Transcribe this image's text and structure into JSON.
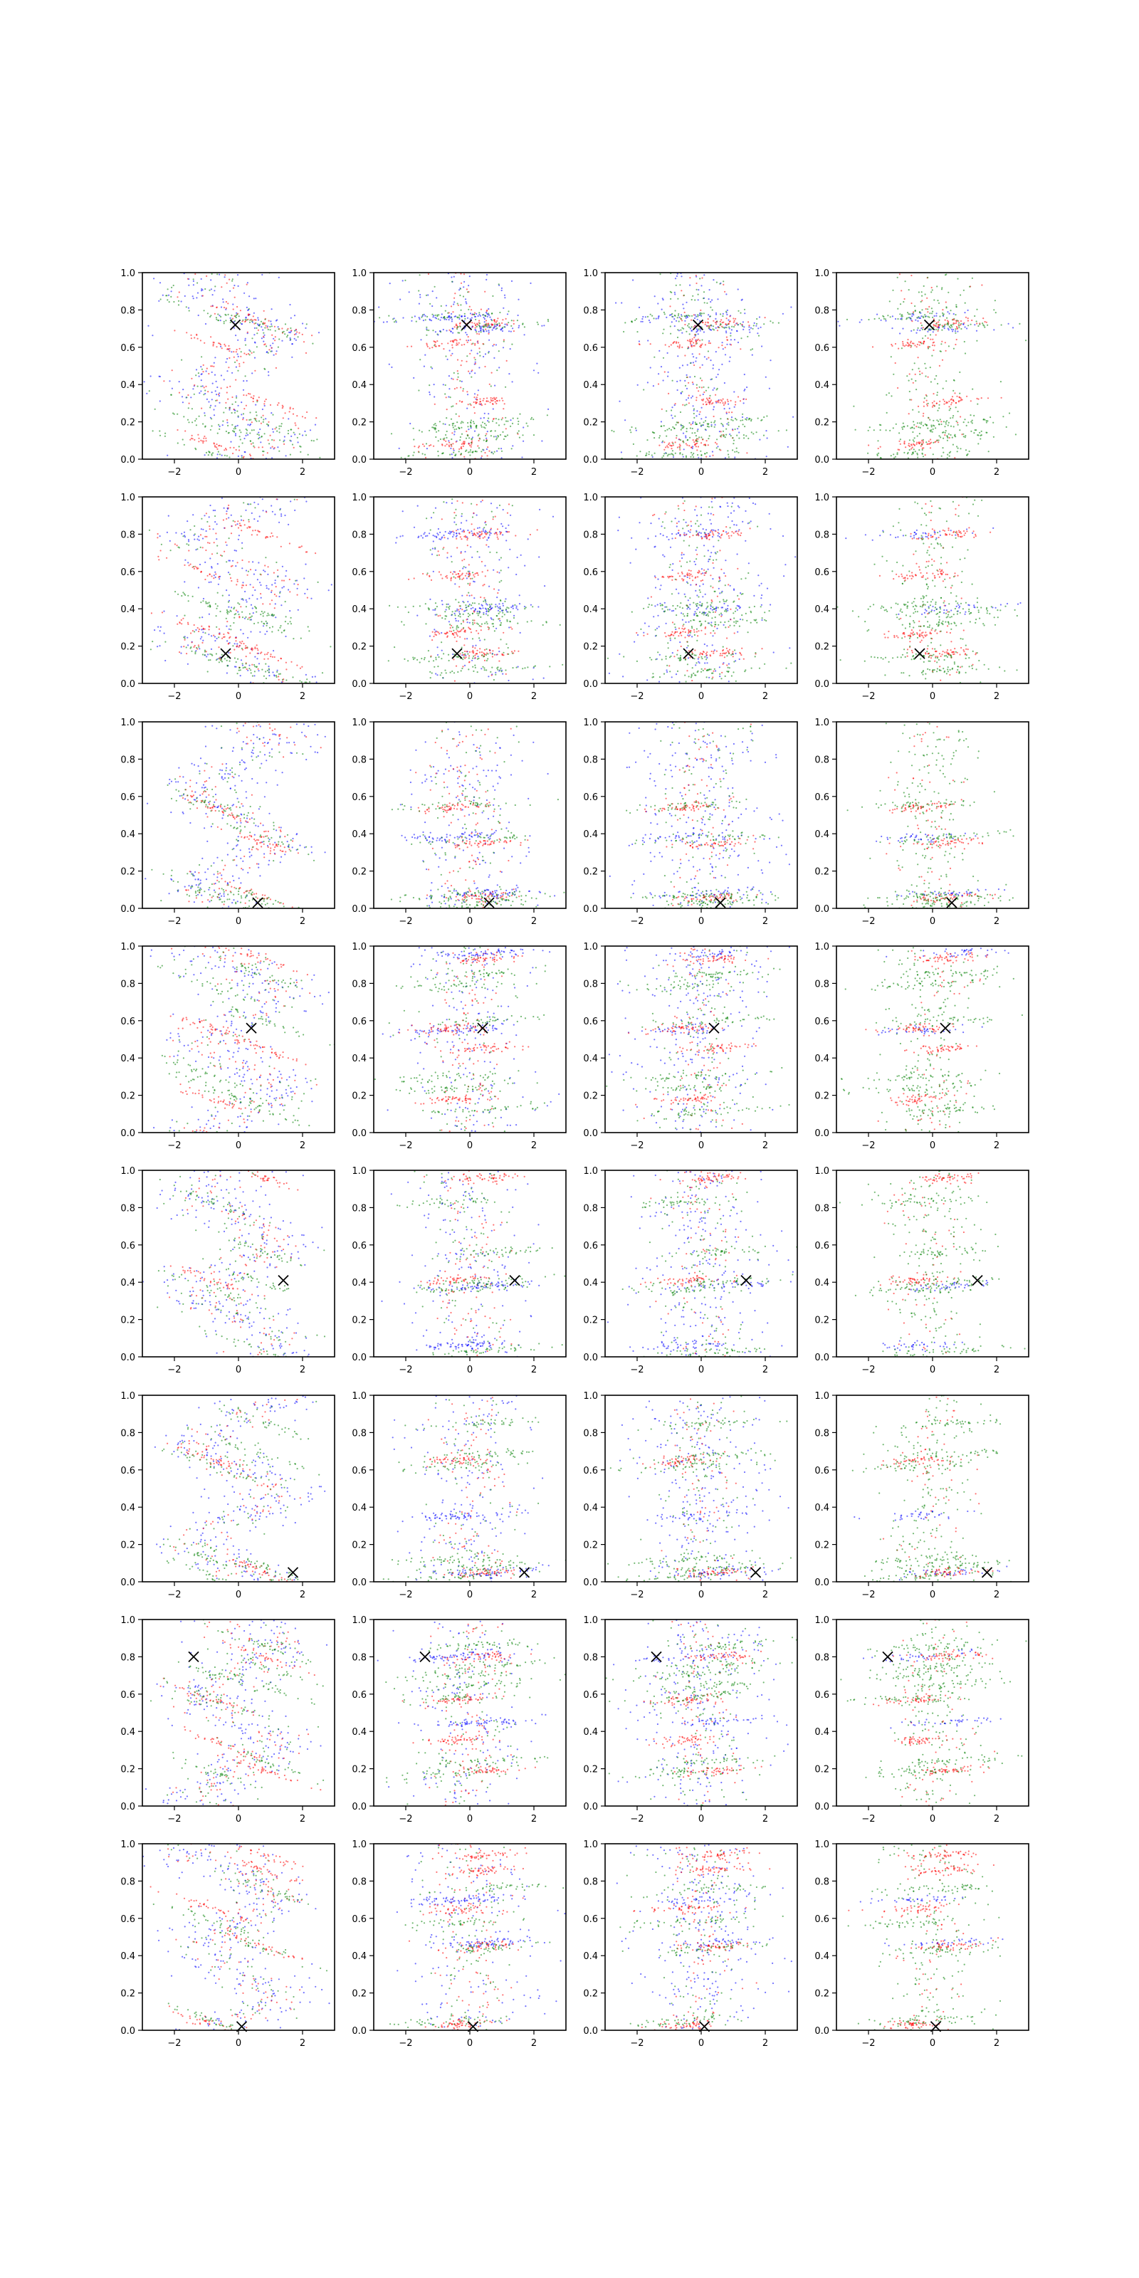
{
  "chart_data": {
    "type": "scatter",
    "grid": {
      "rows": 8,
      "cols": 4
    },
    "title": "",
    "xlabel": "",
    "ylabel": "",
    "xlim": [
      -3,
      3
    ],
    "ylim": [
      0,
      1
    ],
    "x_ticks": [
      -2,
      0,
      2
    ],
    "y_ticks": [
      0.0,
      0.2,
      0.4,
      0.6,
      0.8,
      1.0
    ],
    "x_tick_labels": [
      "−2",
      "0",
      "2"
    ],
    "y_tick_labels": [
      "0.0",
      "0.2",
      "0.4",
      "0.6",
      "0.8",
      "1.0"
    ],
    "legend": "none",
    "series_colors": {
      "blue": "#0000ff",
      "red": "#ff0000",
      "green": "#008000"
    },
    "marker_colors": {
      "x_marker": "#000000"
    },
    "rows": [
      {
        "x_marker": [
          -0.1,
          0.72
        ],
        "red_bands": [
          0.31,
          0.62,
          0.73,
          0.08
        ],
        "green_bands": [
          0.71,
          0.77,
          0.2,
          0.17,
          0.12,
          0.03
        ],
        "blue_bands": [
          0.7,
          0.76
        ]
      },
      {
        "x_marker": [
          -0.4,
          0.16
        ],
        "red_bands": [
          0.8,
          0.27,
          0.16,
          0.58
        ],
        "green_bands": [
          0.07,
          0.14,
          0.38,
          0.42,
          0.32
        ],
        "blue_bands": [
          0.4,
          0.8
        ]
      },
      {
        "x_marker": [
          0.6,
          0.03
        ],
        "red_bands": [
          0.06,
          0.54,
          0.35
        ],
        "green_bands": [
          0.05,
          0.07,
          0.02,
          0.55,
          0.38
        ],
        "blue_bands": [
          0.08,
          0.38
        ]
      },
      {
        "x_marker": [
          0.4,
          0.56
        ],
        "red_bands": [
          0.93,
          0.56,
          0.45,
          0.18
        ],
        "green_bands": [
          0.85,
          0.79,
          0.6,
          0.24,
          0.12,
          0.3
        ],
        "blue_bands": [
          0.96,
          0.55
        ]
      },
      {
        "x_marker": [
          1.4,
          0.41
        ],
        "red_bands": [
          0.96,
          0.41
        ],
        "green_bands": [
          0.4,
          0.36,
          0.03,
          0.83,
          0.56
        ],
        "blue_bands": [
          0.38,
          0.06
        ]
      },
      {
        "x_marker": [
          1.7,
          0.05
        ],
        "red_bands": [
          0.05,
          0.65
        ],
        "green_bands": [
          0.68,
          0.62,
          0.08,
          0.12,
          0.85,
          0.03
        ],
        "blue_bands": [
          0.05,
          0.35
        ]
      },
      {
        "x_marker": [
          -1.4,
          0.8
        ],
        "red_bands": [
          0.8,
          0.35,
          0.19,
          0.57
        ],
        "green_bands": [
          0.75,
          0.7,
          0.65,
          0.58,
          0.24,
          0.18,
          0.86
        ],
        "blue_bands": [
          0.45,
          0.8
        ]
      },
      {
        "x_marker": [
          0.1,
          0.02
        ],
        "red_bands": [
          0.45,
          0.03,
          0.94,
          0.65,
          0.86
        ],
        "green_bands": [
          0.44,
          0.05,
          0.76,
          0.58
        ],
        "blue_bands": [
          0.47,
          0.7
        ]
      }
    ]
  }
}
